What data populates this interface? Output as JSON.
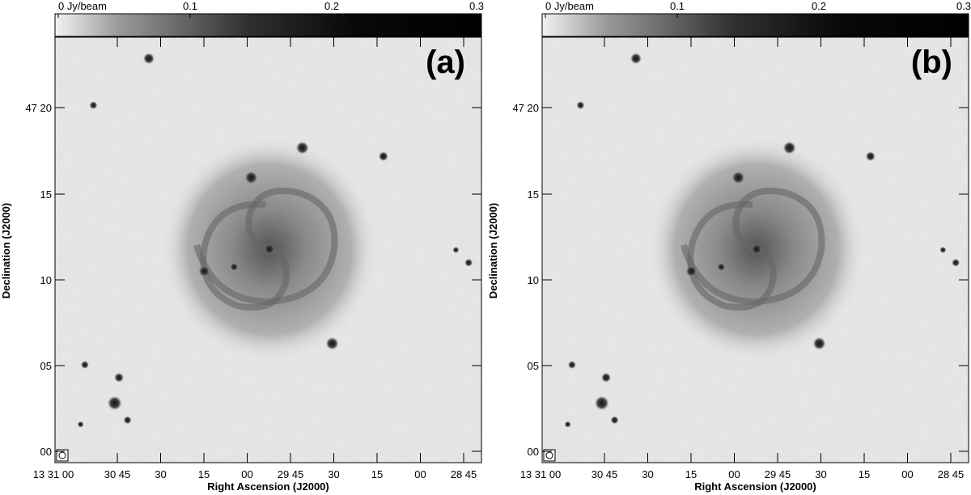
{
  "colorbar_ticks": [
    "0 Jy/beam",
    "0.1",
    "0.2",
    "0.3"
  ],
  "y_axis_label": "Declination (J2000)",
  "x_axis_label": "Right Ascension (J2000)",
  "y_ticks": [
    "47 20",
    "15",
    "10",
    "05",
    "00"
  ],
  "x_ticks": [
    "13 31 00",
    "30 45",
    "30",
    "15",
    "00",
    "29 45",
    "30",
    "15",
    "00",
    "28 45"
  ],
  "panels": [
    {
      "label": "(a)"
    },
    {
      "label": "(b)"
    }
  ]
}
